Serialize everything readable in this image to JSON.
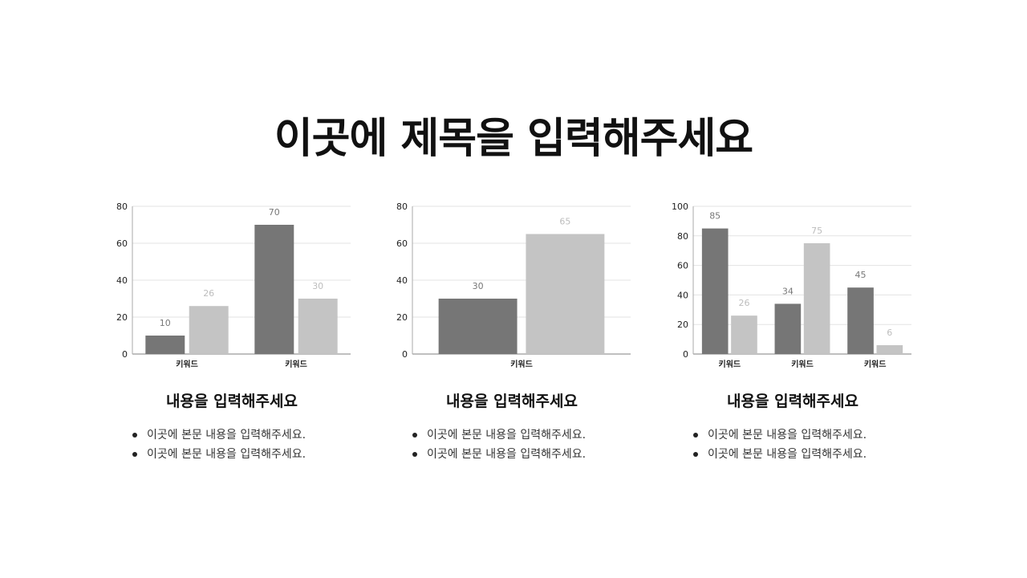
{
  "title": "이곳에 제목을 입력해주세요",
  "colors": {
    "series_dark": "#767676",
    "series_light": "#c4c4c4",
    "grid": "#e3e3e3",
    "axis": "#aaaaaa",
    "label_dark": "#777777",
    "label_light": "#bdbdbd"
  },
  "panels": [
    {
      "heading": "내용을 입력해주세요",
      "bullets": [
        "이곳에 본문 내용을 입력해주세요.",
        "이곳에 본문 내용을 입력해주세요."
      ]
    },
    {
      "heading": "내용을 입력해주세요",
      "bullets": [
        "이곳에 본문 내용을 입력해주세요.",
        "이곳에 본문 내용을 입력해주세요."
      ]
    },
    {
      "heading": "내용을 입력해주세요",
      "bullets": [
        "이곳에 본문 내용을 입력해주세요.",
        "이곳에 본문 내용을 입력해주세요."
      ]
    }
  ],
  "chart_data": [
    {
      "type": "bar",
      "categories": [
        "키워드",
        "키워드"
      ],
      "series": [
        {
          "values": [
            10,
            70
          ]
        },
        {
          "values": [
            26,
            30
          ]
        }
      ],
      "ylim": [
        0,
        80
      ],
      "yticks": [
        0,
        20,
        40,
        60,
        80
      ],
      "grid": true,
      "legend": "none",
      "data_labels": true
    },
    {
      "type": "bar",
      "categories": [
        "키워드"
      ],
      "series": [
        {
          "values": [
            30
          ]
        },
        {
          "values": [
            65
          ]
        }
      ],
      "ylim": [
        0,
        80
      ],
      "yticks": [
        0,
        20,
        40,
        60,
        80
      ],
      "grid": true,
      "legend": "none",
      "data_labels": true
    },
    {
      "type": "bar",
      "categories": [
        "키워드",
        "키워드",
        "키워드"
      ],
      "series": [
        {
          "values": [
            85,
            34,
            45
          ]
        },
        {
          "values": [
            26,
            75,
            6
          ]
        }
      ],
      "ylim": [
        0,
        100
      ],
      "yticks": [
        0,
        20,
        40,
        60,
        80,
        100
      ],
      "grid": true,
      "legend": "none",
      "data_labels": true
    }
  ]
}
